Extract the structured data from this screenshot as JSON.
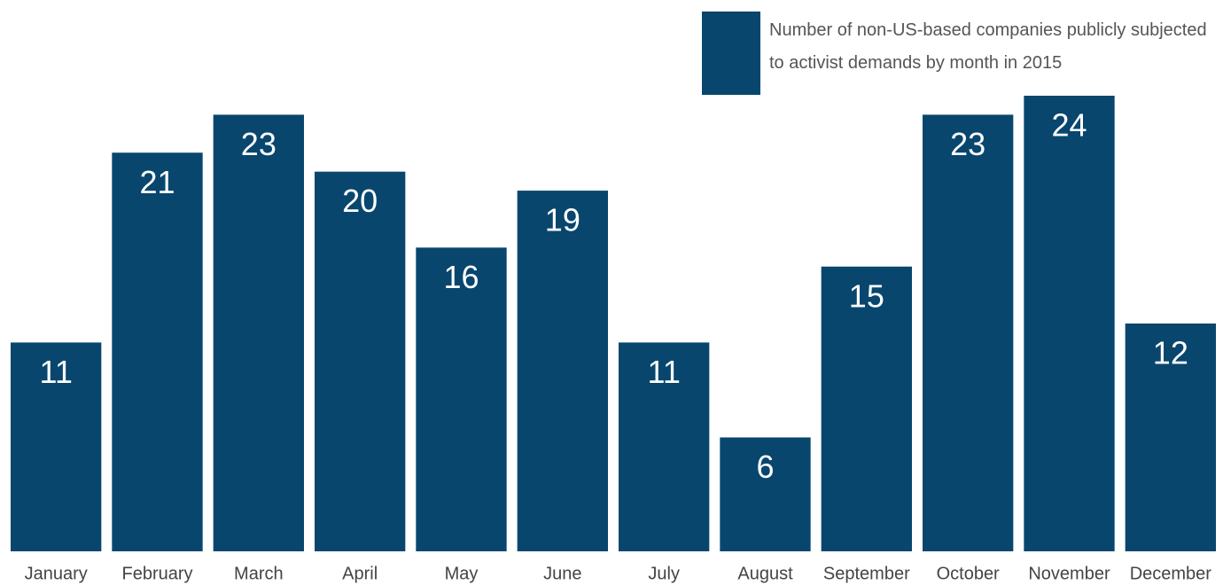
{
  "chart_data": {
    "type": "bar",
    "series": [
      {
        "name": "Number of non-US-based companies publicly subjected to activist demands by month in 2015",
        "color": "#08466e",
        "values": [
          11,
          21,
          23,
          20,
          16,
          19,
          11,
          6,
          15,
          23,
          24,
          12
        ]
      }
    ],
    "categories": [
      "January",
      "February",
      "March",
      "April",
      "May",
      "June",
      "July",
      "August",
      "September",
      "October",
      "November",
      "December"
    ],
    "legend": "top-right"
  }
}
